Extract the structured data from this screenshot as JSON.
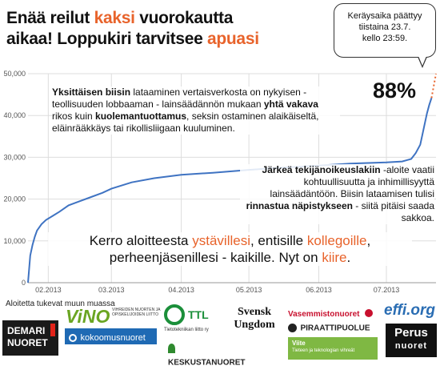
{
  "headline": {
    "line1_a": "Enää reilut ",
    "line1_hl": "kaksi",
    "line1_b": " vuorokautta",
    "line2_a": "aikaa! Loppukiri tarvitsee ",
    "line2_hl": "apuasi"
  },
  "bubble": {
    "line1": "Keräysaika päättyy",
    "line2": "tiistaina 23.7.",
    "line3": "kello 23:59."
  },
  "percent_label": "88%",
  "note1": {
    "b1": "Yksittäisen biisin",
    "t1": " lataaminen vertaisverkosta on nykyisen - teollisuuden lobbaaman - lainsäädännön mukaan ",
    "b2": "yhtä vakava",
    "t2": " rikos kuin ",
    "b3": "kuolemantuottamus",
    "t3": ", seksin ostaminen alaikäiseltä, eläinrääkkäys tai rikollisliigaan kuuluminen."
  },
  "note2": {
    "b1": "Järkeä tekijänoikeuslakiin",
    "t1": " -aloite vaatii kohtuullisuutta ja inhimillisyyttä lainsäädäntöön. Biisin lataamisen tulisi ",
    "b2": "rinnastua näpistykseen",
    "t2": " - siitä pitäisi saada sakkoa."
  },
  "cta": {
    "t1": "Kerro aloitteesta ",
    "h1": "ystävillesi",
    "t2": ", entisille ",
    "h2": "kollegoille",
    "t3": ", perheenjäsenillesi - kaikille. Nyt on ",
    "h3": "kiire",
    "t4": "."
  },
  "support_label": "Aloitetta tukevat muun muassa",
  "logos": {
    "demari_1": "DEMARI",
    "demari_2": "NUORET",
    "vino": "ViNO",
    "vino_sub": "VIHREIDEN NUORTEN JA OPISKELIJOIDEN LIITTO",
    "kokoomus": "kokoomusnuoret",
    "ttl": "TTL",
    "ttl_sub": "Tietotekniikan liitto ry",
    "keskusta": "KESKUSTANUORET",
    "svensk_1": "Svensk",
    "svensk_2": "Ungdom",
    "vasemmisto": "Vasemmistonuoret",
    "piraatti": "PIRAATTIPUOLUE",
    "viite": "Viite",
    "viite_sub": "Tieteen ja teknologian vihreät",
    "effi": "effi.org",
    "perus_1": "Perus",
    "perus_2": "nuoret"
  },
  "colors": {
    "accent": "#e8632b",
    "line": "#3f73c2",
    "projection": "#e8632b"
  },
  "chart_data": {
    "type": "line",
    "title": "",
    "xlabel": "",
    "ylabel": "",
    "ylim": [
      0,
      50000
    ],
    "yticks": [
      0,
      10000,
      20000,
      30000,
      40000,
      50000
    ],
    "ytick_labels": [
      "0",
      "10,000",
      "20,000",
      "30,000",
      "40,000",
      "50,000"
    ],
    "xlim": [
      "2013-01-23",
      "2013-07-23"
    ],
    "xticks": [
      "2013-02-01",
      "2013-03-01",
      "2013-04-01",
      "2013-05-01",
      "2013-06-01",
      "2013-07-01"
    ],
    "xtick_labels": [
      "02.2013",
      "03.2013",
      "04.2013",
      "05.2013",
      "06.2013",
      "07.2013"
    ],
    "grid": true,
    "series": [
      {
        "x": [
          "2013-01-23",
          "2013-01-24",
          "2013-01-25",
          "2013-01-26",
          "2013-01-27",
          "2013-01-29",
          "2013-01-31",
          "2013-02-03",
          "2013-02-06",
          "2013-02-10",
          "2013-02-15",
          "2013-02-20",
          "2013-02-25",
          "2013-03-01",
          "2013-03-10",
          "2013-03-20",
          "2013-04-01",
          "2013-04-15",
          "2013-05-01",
          "2013-05-15",
          "2013-06-01",
          "2013-06-15",
          "2013-07-01",
          "2013-07-08",
          "2013-07-12",
          "2013-07-14",
          "2013-07-16",
          "2013-07-17",
          "2013-07-18",
          "2013-07-19",
          "2013-07-20",
          "2013-07-21"
        ],
        "y": [
          0,
          6500,
          9000,
          11000,
          12500,
          14000,
          15000,
          16000,
          17000,
          18500,
          19500,
          20500,
          21500,
          22500,
          24000,
          25000,
          25800,
          26300,
          27000,
          27500,
          28000,
          28500,
          28800,
          29000,
          29600,
          31000,
          33000,
          35500,
          38000,
          40500,
          42500,
          44200
        ]
      },
      {
        "x": [
          "2013-07-21",
          "2013-07-23"
        ],
        "y": [
          44200,
          50000
        ],
        "style": "dotted"
      }
    ]
  }
}
